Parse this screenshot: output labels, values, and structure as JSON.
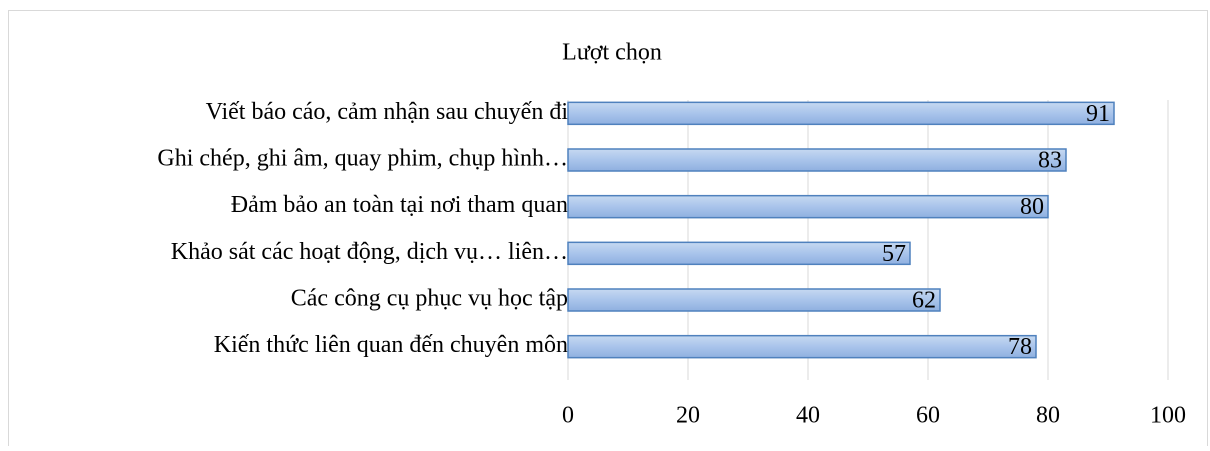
{
  "chart_data": {
    "type": "bar",
    "orientation": "horizontal",
    "title": "Lượt chọn",
    "categories": [
      "Viết báo cáo, cảm nhận sau chuyến đi",
      "Ghi chép, ghi âm, quay phim, chụp hình…",
      "Đảm bảo an toàn tại nơi tham quan",
      "Khảo sát các hoạt động, dịch vụ… liên…",
      "Các công cụ phục vụ học tập",
      "Kiến thức liên quan đến chuyên môn"
    ],
    "values": [
      91,
      83,
      80,
      57,
      62,
      78
    ],
    "color": "#a9c4eb",
    "xlim": [
      0,
      100
    ],
    "xticks": [
      0,
      20,
      40,
      60,
      80,
      100
    ],
    "grid": true
  }
}
